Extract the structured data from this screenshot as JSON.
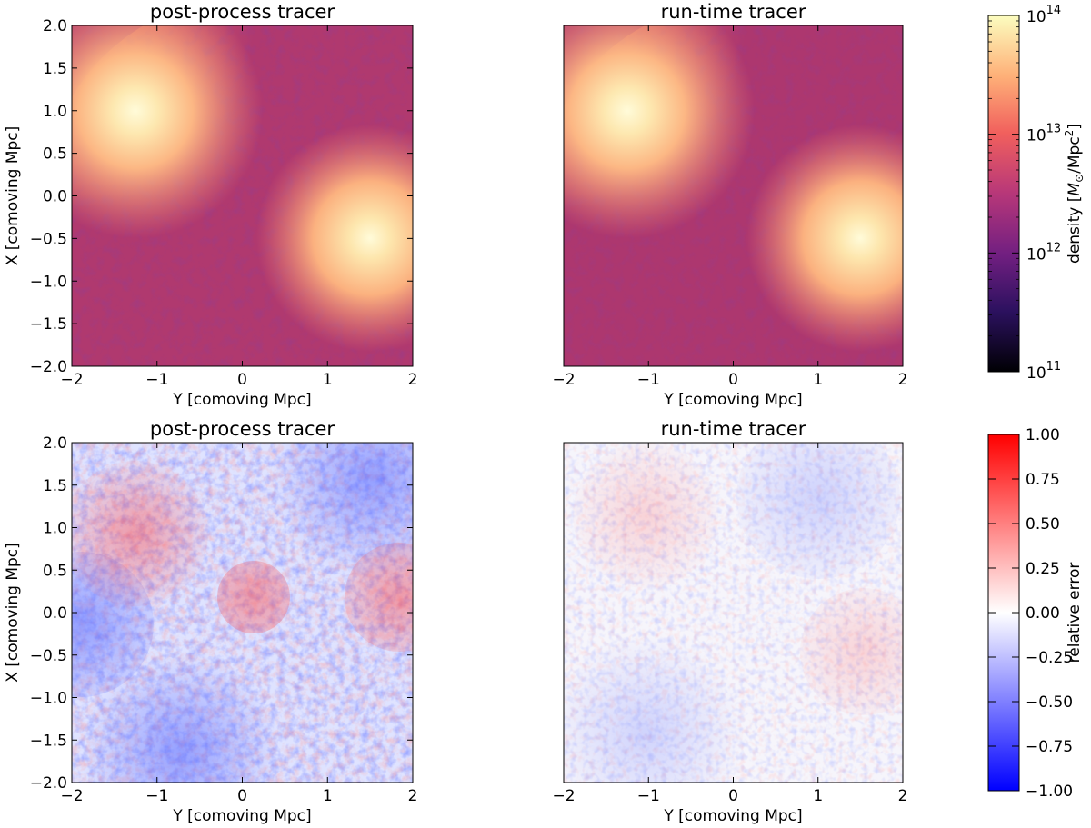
{
  "chart_data": [
    {
      "type": "heatmap",
      "title": "post-process tracer",
      "xlabel": "Y [comoving Mpc]",
      "ylabel": "X [comoving Mpc]",
      "xlim": [
        -2,
        2
      ],
      "ylim": [
        -2,
        2
      ],
      "xticks": [
        -2,
        -1,
        0,
        1,
        2
      ],
      "yticks": [
        -2.0,
        -1.5,
        -1.0,
        -0.5,
        0.0,
        0.5,
        1.0,
        1.5,
        2.0
      ],
      "colormap": "magma",
      "color_scale": "log",
      "quantity": "density",
      "peaks": [
        {
          "y": -1.25,
          "x": 0.95,
          "density": 100000000000000.0
        },
        {
          "y": 1.5,
          "x": -0.45,
          "density": 80000000000000.0
        }
      ]
    },
    {
      "type": "heatmap",
      "title": "run-time tracer",
      "xlabel": "Y [comoving Mpc]",
      "ylabel": "",
      "xlim": [
        -2,
        2
      ],
      "ylim": [
        -2,
        2
      ],
      "xticks": [
        -2,
        -1,
        0,
        1,
        2
      ],
      "yticks": [],
      "colormap": "magma",
      "color_scale": "log",
      "quantity": "density",
      "peaks": [
        {
          "y": -1.25,
          "x": 0.95,
          "density": 100000000000000.0
        },
        {
          "y": 1.5,
          "x": -0.5,
          "density": 80000000000000.0
        }
      ]
    },
    {
      "type": "heatmap",
      "title": "post-process tracer",
      "xlabel": "Y [comoving Mpc]",
      "ylabel": "X [comoving Mpc]",
      "xlim": [
        -2,
        2
      ],
      "ylim": [
        -2,
        2
      ],
      "xticks": [
        -2,
        -1,
        0,
        1,
        2
      ],
      "yticks": [
        -2.0,
        -1.5,
        -1.0,
        -0.5,
        0.0,
        0.5,
        1.0,
        1.5,
        2.0
      ],
      "colormap": "bwr",
      "quantity": "relative error",
      "color_range": [
        -1.0,
        1.0
      ]
    },
    {
      "type": "heatmap",
      "title": "run-time tracer",
      "xlabel": "Y [comoving Mpc]",
      "ylabel": "",
      "xlim": [
        -2,
        2
      ],
      "ylim": [
        -2,
        2
      ],
      "xticks": [
        -2,
        -1,
        0,
        1,
        2
      ],
      "yticks": [],
      "colormap": "bwr",
      "quantity": "relative error",
      "color_range": [
        -1.0,
        1.0
      ]
    }
  ],
  "colorbars": [
    {
      "label_prefix": "density [",
      "label_sym": "M",
      "label_sub": "⊙",
      "label_mid": "/Mpc",
      "label_sup": "2",
      "label_suffix": "]",
      "scale": "log",
      "range": [
        100000000000.0,
        100000000000000.0
      ],
      "ticks": [
        {
          "base": "10",
          "exp": "11"
        },
        {
          "base": "10",
          "exp": "12"
        },
        {
          "base": "10",
          "exp": "13"
        },
        {
          "base": "10",
          "exp": "14"
        }
      ]
    },
    {
      "label": "relative error",
      "range": [
        -1.0,
        1.0
      ],
      "ticks": [
        "1.00",
        "0.75",
        "0.50",
        "0.25",
        "0.00",
        "−0.25",
        "−0.50",
        "−0.75",
        "−1.00"
      ]
    }
  ],
  "x_tick_labels": [
    "−2",
    "−1",
    "0",
    "1",
    "2"
  ],
  "y_tick_labels": [
    "2.0",
    "1.5",
    "1.0",
    "0.5",
    "0.0",
    "−0.5",
    "−1.0",
    "−1.5",
    "−2.0"
  ],
  "colors": {
    "magma": [
      "#000004",
      "#2c115f",
      "#721f81",
      "#b73779",
      "#f1605d",
      "#feb078",
      "#fcfdbf"
    ],
    "bwr": [
      "#0000ff",
      "#ffffff",
      "#ff0000"
    ]
  }
}
